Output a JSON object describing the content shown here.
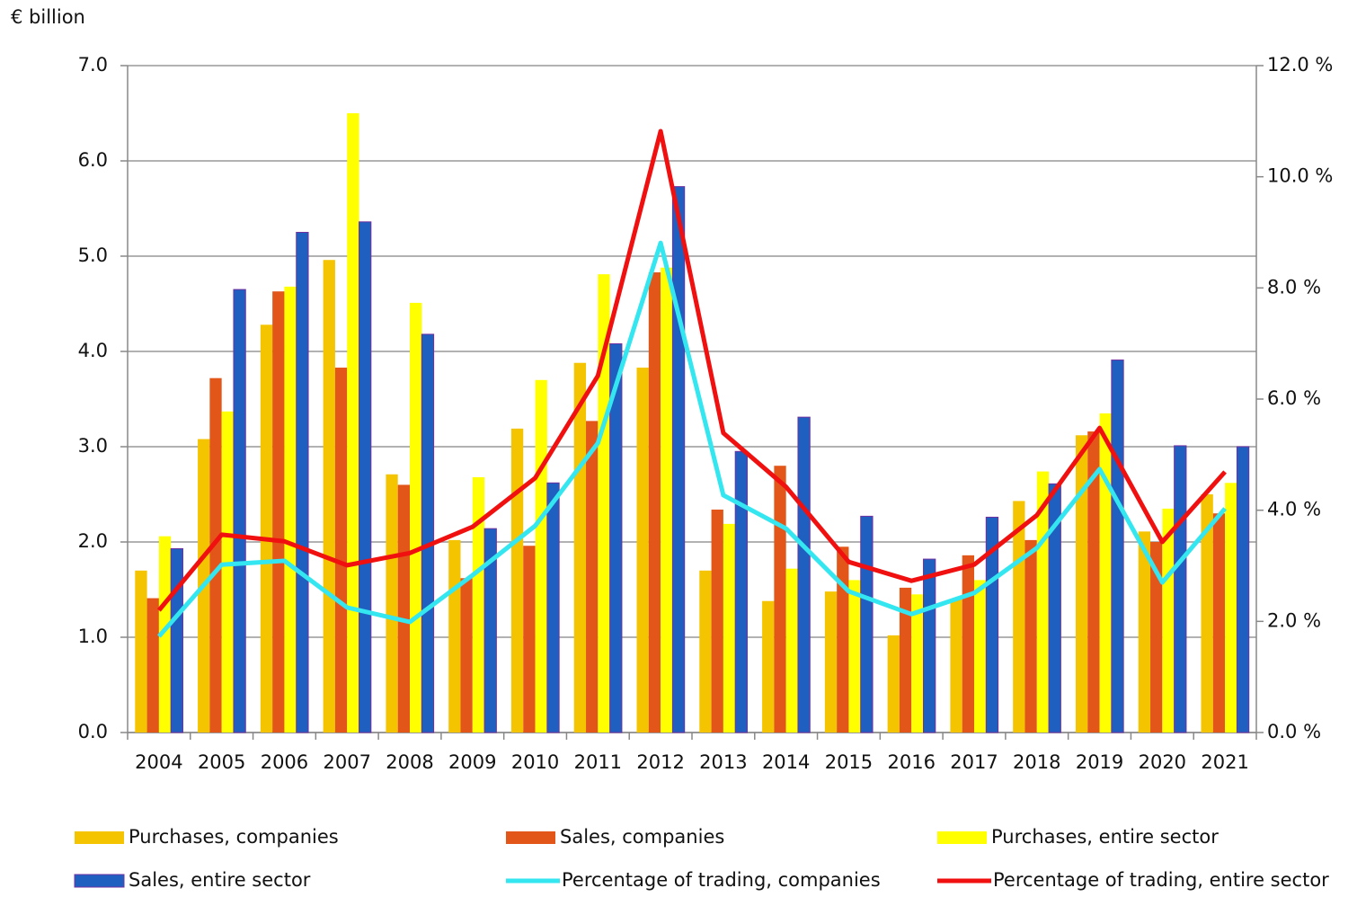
{
  "chart_data": {
    "type": "bar_line",
    "y_label": "€ billion",
    "categories": [
      "2004",
      "2005",
      "2006",
      "2007",
      "2008",
      "2009",
      "2010",
      "2011",
      "2012",
      "2013",
      "2014",
      "2015",
      "2016",
      "2017",
      "2018",
      "2019",
      "2020",
      "2021"
    ],
    "series": [
      {
        "name": "Purchases, companies",
        "type": "bar",
        "color": "#f5c400",
        "values": [
          1.7,
          3.08,
          4.28,
          4.96,
          2.71,
          2.02,
          3.19,
          3.88,
          3.83,
          1.7,
          1.38,
          1.48,
          1.02,
          1.4,
          2.43,
          3.12,
          2.11,
          2.5
        ]
      },
      {
        "name": "Sales, companies",
        "type": "bar",
        "color": "#e2561a",
        "values": [
          1.41,
          3.72,
          4.63,
          3.83,
          2.6,
          1.62,
          1.96,
          3.27,
          4.83,
          2.34,
          2.8,
          1.95,
          1.52,
          1.86,
          2.02,
          3.16,
          2.0,
          2.3
        ]
      },
      {
        "name": "Purchases, entire sector",
        "type": "bar",
        "color": "#ffff00",
        "values": [
          2.06,
          3.37,
          4.68,
          6.5,
          4.51,
          2.68,
          3.7,
          4.81,
          4.88,
          2.19,
          1.72,
          1.6,
          1.45,
          1.6,
          2.74,
          3.35,
          2.35,
          2.62
        ]
      },
      {
        "name": "Sales, entire sector",
        "type": "bar",
        "color": "#1f5fbf",
        "values": [
          1.93,
          4.65,
          5.25,
          5.36,
          4.18,
          2.14,
          2.62,
          4.08,
          5.73,
          2.95,
          3.31,
          2.27,
          1.82,
          2.26,
          2.61,
          3.91,
          3.01,
          3.0
        ]
      },
      {
        "name": "Percentage of trading, companies",
        "type": "line",
        "axis": "y2",
        "color": "#33e6f0",
        "values": [
          1.73,
          3.02,
          3.09,
          2.25,
          1.99,
          2.83,
          3.72,
          5.21,
          8.81,
          4.27,
          3.67,
          2.54,
          2.13,
          2.51,
          3.32,
          4.74,
          2.7,
          4.03
        ]
      },
      {
        "name": "Percentage of trading, entire sector",
        "type": "line",
        "axis": "y2",
        "color": "#f01010",
        "values": [
          2.2,
          3.56,
          3.44,
          3.01,
          3.23,
          3.7,
          4.58,
          6.42,
          10.82,
          5.39,
          4.42,
          3.07,
          2.73,
          3.02,
          3.91,
          5.48,
          3.43,
          4.69
        ]
      }
    ],
    "ylim": [
      0,
      7
    ],
    "yticks": [
      {
        "value": 0,
        "label": "0.0"
      },
      {
        "value": 1,
        "label": "1.0"
      },
      {
        "value": 2,
        "label": "2.0"
      },
      {
        "value": 3,
        "label": "3.0"
      },
      {
        "value": 4,
        "label": "4.0"
      },
      {
        "value": 5,
        "label": "5.0"
      },
      {
        "value": 6,
        "label": "6.0"
      },
      {
        "value": 7,
        "label": "7.0"
      }
    ],
    "y2lim": [
      0,
      12
    ],
    "y2ticks": [
      {
        "value": 0,
        "label": "0.0 %"
      },
      {
        "value": 2,
        "label": "2.0 %"
      },
      {
        "value": 4,
        "label": "4.0 %"
      },
      {
        "value": 6,
        "label": "6.0 %"
      },
      {
        "value": 8,
        "label": "8.0 %"
      },
      {
        "value": 10,
        "label": "10.0 %"
      },
      {
        "value": 12,
        "label": "12.0 %"
      }
    ],
    "grid": true,
    "legend": "bottom"
  }
}
